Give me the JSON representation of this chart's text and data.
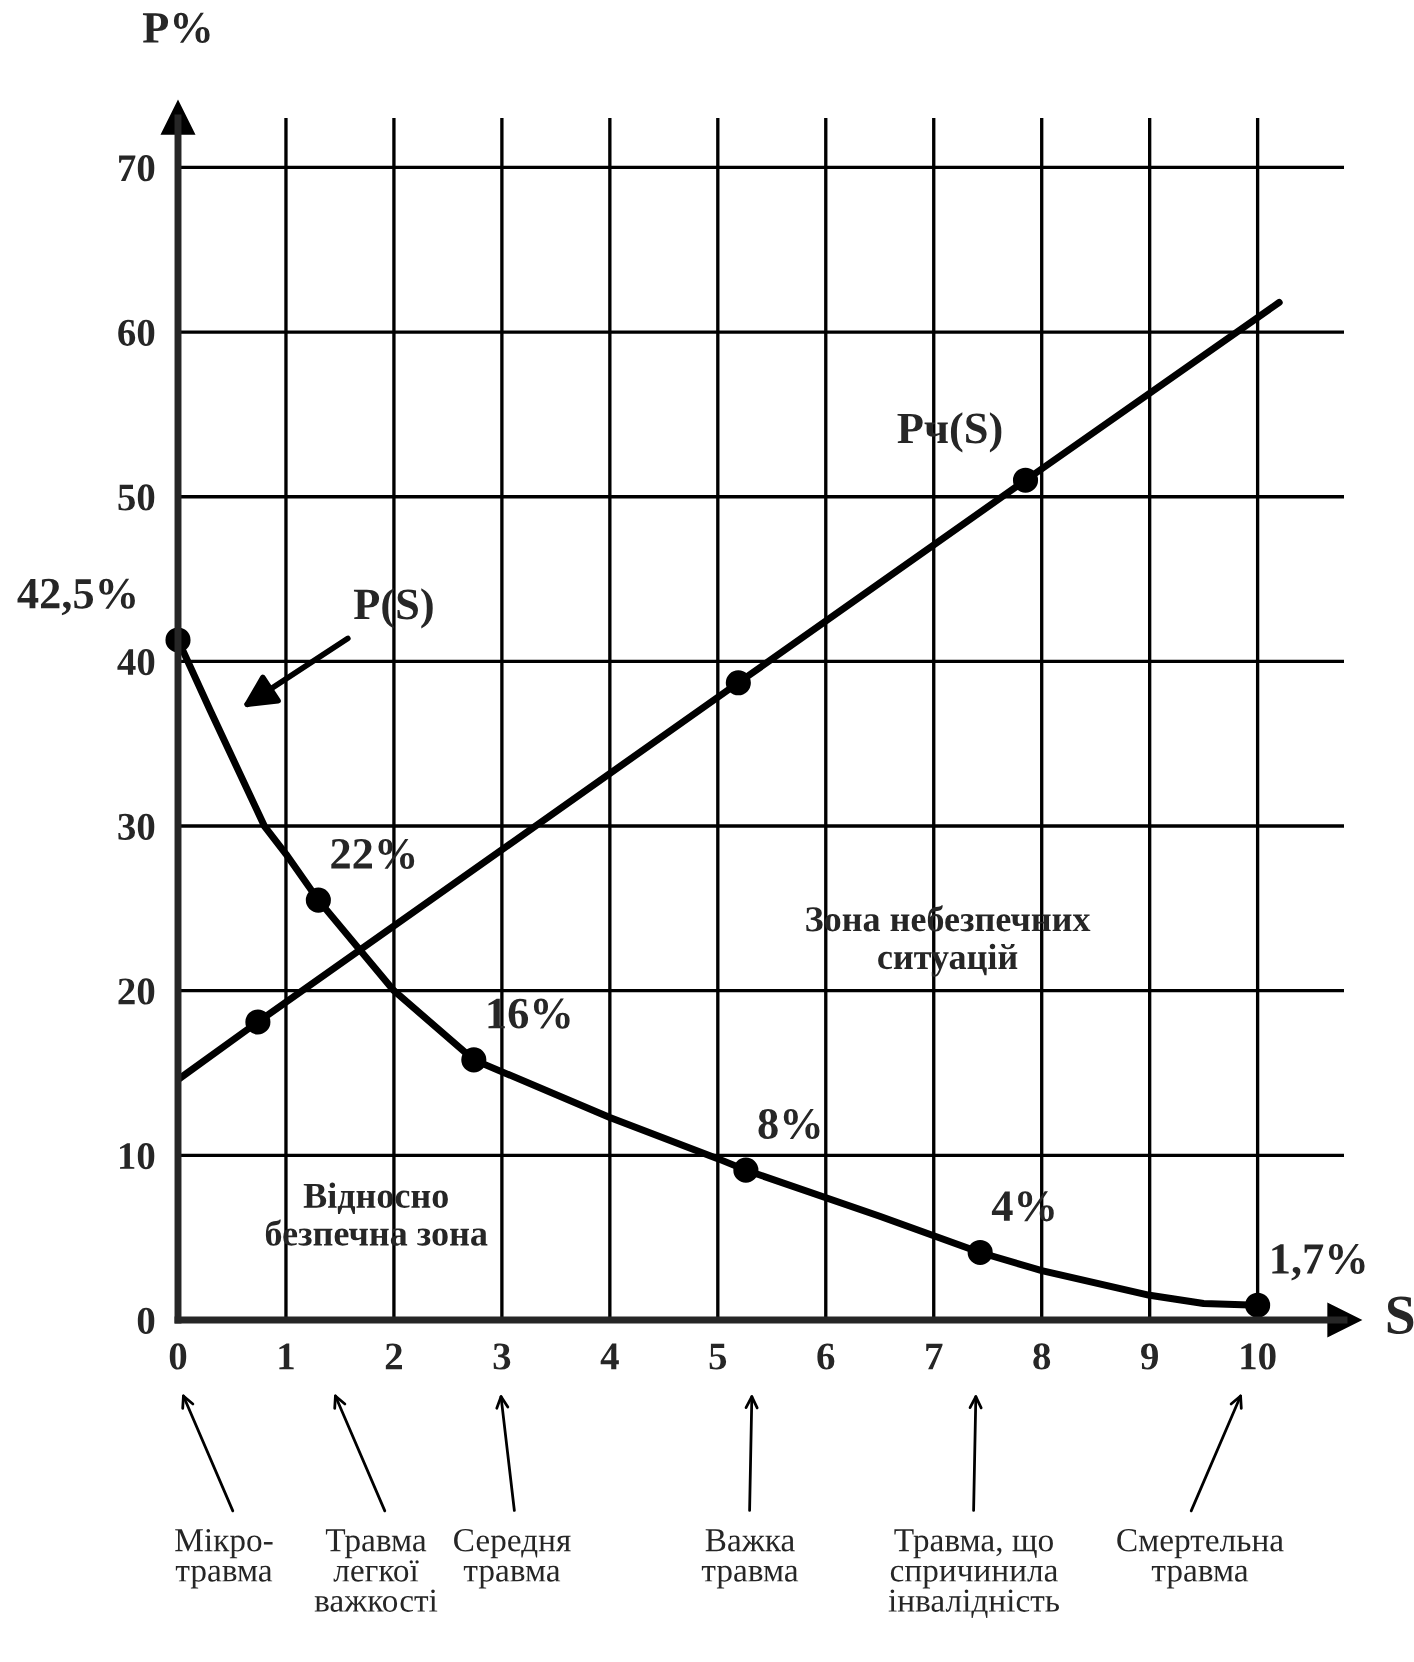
{
  "chart_data": {
    "type": "line",
    "xlabel": "S",
    "ylabel": "P%",
    "xlim": [
      0,
      10.8
    ],
    "ylim": [
      0,
      73
    ],
    "xticks": [
      0,
      1,
      2,
      3,
      4,
      5,
      6,
      7,
      8,
      9,
      10
    ],
    "yticks": [
      0,
      10,
      20,
      30,
      40,
      50,
      60,
      70
    ],
    "grid": true,
    "legend": false,
    "series": [
      {
        "name": "P(S)",
        "color": "#000000",
        "x": [
          0,
          0.3,
          0.8,
          1.0,
          1.3,
          2.0,
          2.74,
          4.0,
          5.0,
          5.26,
          6.5,
          7.43,
          8.0,
          9.0,
          9.5,
          10.0
        ],
        "values": [
          41.3,
          37,
          30,
          28.3,
          25.5,
          20,
          15.8,
          12.3,
          9.8,
          9.1,
          6.3,
          4.1,
          3.0,
          1.5,
          1.0,
          0.9
        ]
      },
      {
        "type": "scatter",
        "color": "#000000",
        "x": [
          0,
          1.3,
          2.74,
          5.26,
          7.43,
          10.0
        ],
        "values": [
          41.3,
          25.5,
          15.8,
          9.1,
          4.1,
          0.9
        ]
      },
      {
        "name": "Pч(S)",
        "color": "#000000",
        "x": [
          0,
          0.74,
          5.19,
          7.85,
          10.2
        ],
        "values": [
          14.6,
          18.1,
          38.7,
          51.0,
          61.8
        ]
      },
      {
        "type": "scatter",
        "color": "#000000",
        "x": [
          0.74,
          5.19,
          7.85
        ],
        "values": [
          18.1,
          38.7,
          51.0
        ]
      }
    ],
    "annotations": [
      {
        "text": "42,5%",
        "x": 0,
        "y": 41.3
      },
      {
        "text": "22%",
        "x": 1.3,
        "y": 25.5
      },
      {
        "text": "16%",
        "x": 2.74,
        "y": 15.8
      },
      {
        "text": "8%",
        "x": 5.26,
        "y": 9.1
      },
      {
        "text": "4%",
        "x": 7.43,
        "y": 4.1
      },
      {
        "text": "1,7%",
        "x": 10.0,
        "y": 0.9
      },
      "Відносно\nбезпечна зона",
      "Зона небезпечних\nситуацій",
      "Мікро-\nтравма",
      "Травма\nлегкої\nважкості",
      "Середня\nтравма",
      "Важка\nтравма",
      "Травма, що\nспричинила\nінвалідність",
      "Смертельна\nтравма"
    ]
  }
}
